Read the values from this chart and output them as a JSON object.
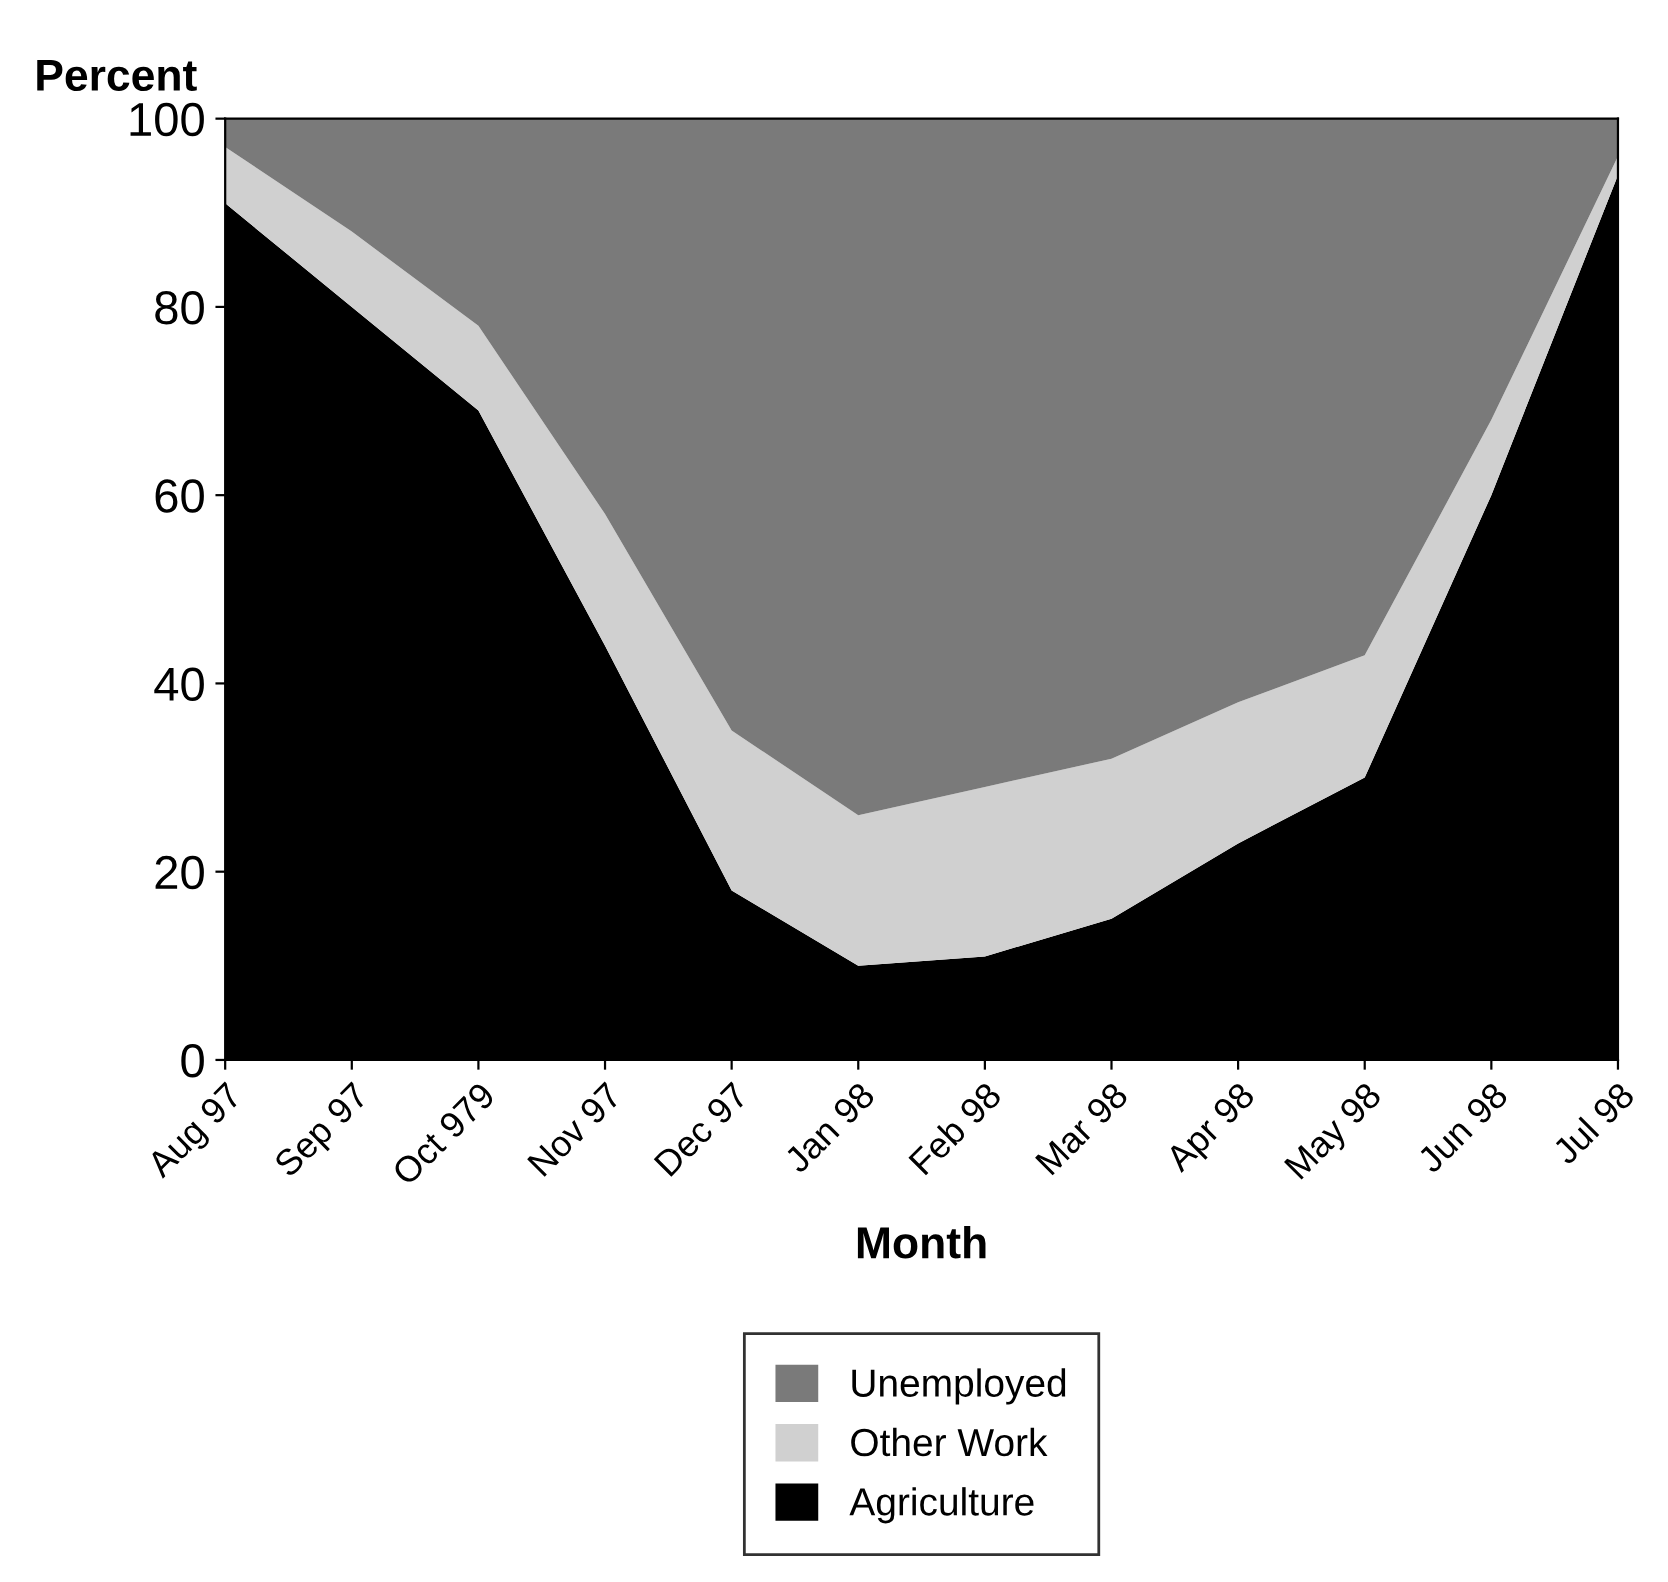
{
  "chart_data": {
    "type": "area",
    "stacked": true,
    "ylabel": "Percent",
    "xlabel": "Month",
    "categories": [
      "Aug 97",
      "Sep 97",
      "Oct 979",
      "Nov 97",
      "Dec 97",
      "Jan 98",
      "Feb 98",
      "Mar 98",
      "Apr 98",
      "May 98",
      "Jun 98",
      "Jul 98"
    ],
    "series": [
      {
        "name": "Agriculture",
        "color": "#000000",
        "values": [
          91,
          80,
          69,
          44,
          18,
          10,
          11,
          15,
          23,
          30,
          60,
          94
        ]
      },
      {
        "name": "Other Work",
        "color": "#d0d0d0",
        "values": [
          6,
          8,
          9,
          14,
          17,
          16,
          18,
          17,
          15,
          13,
          8,
          2
        ]
      },
      {
        "name": "Unemployed",
        "color": "#7a7a7a",
        "values": [
          3,
          12,
          22,
          42,
          65,
          74,
          71,
          68,
          62,
          57,
          32,
          4
        ]
      }
    ],
    "ylim": [
      0,
      100
    ],
    "yticks": [
      0,
      20,
      40,
      60,
      80,
      100
    ],
    "grid": false,
    "legend": "bottom"
  }
}
